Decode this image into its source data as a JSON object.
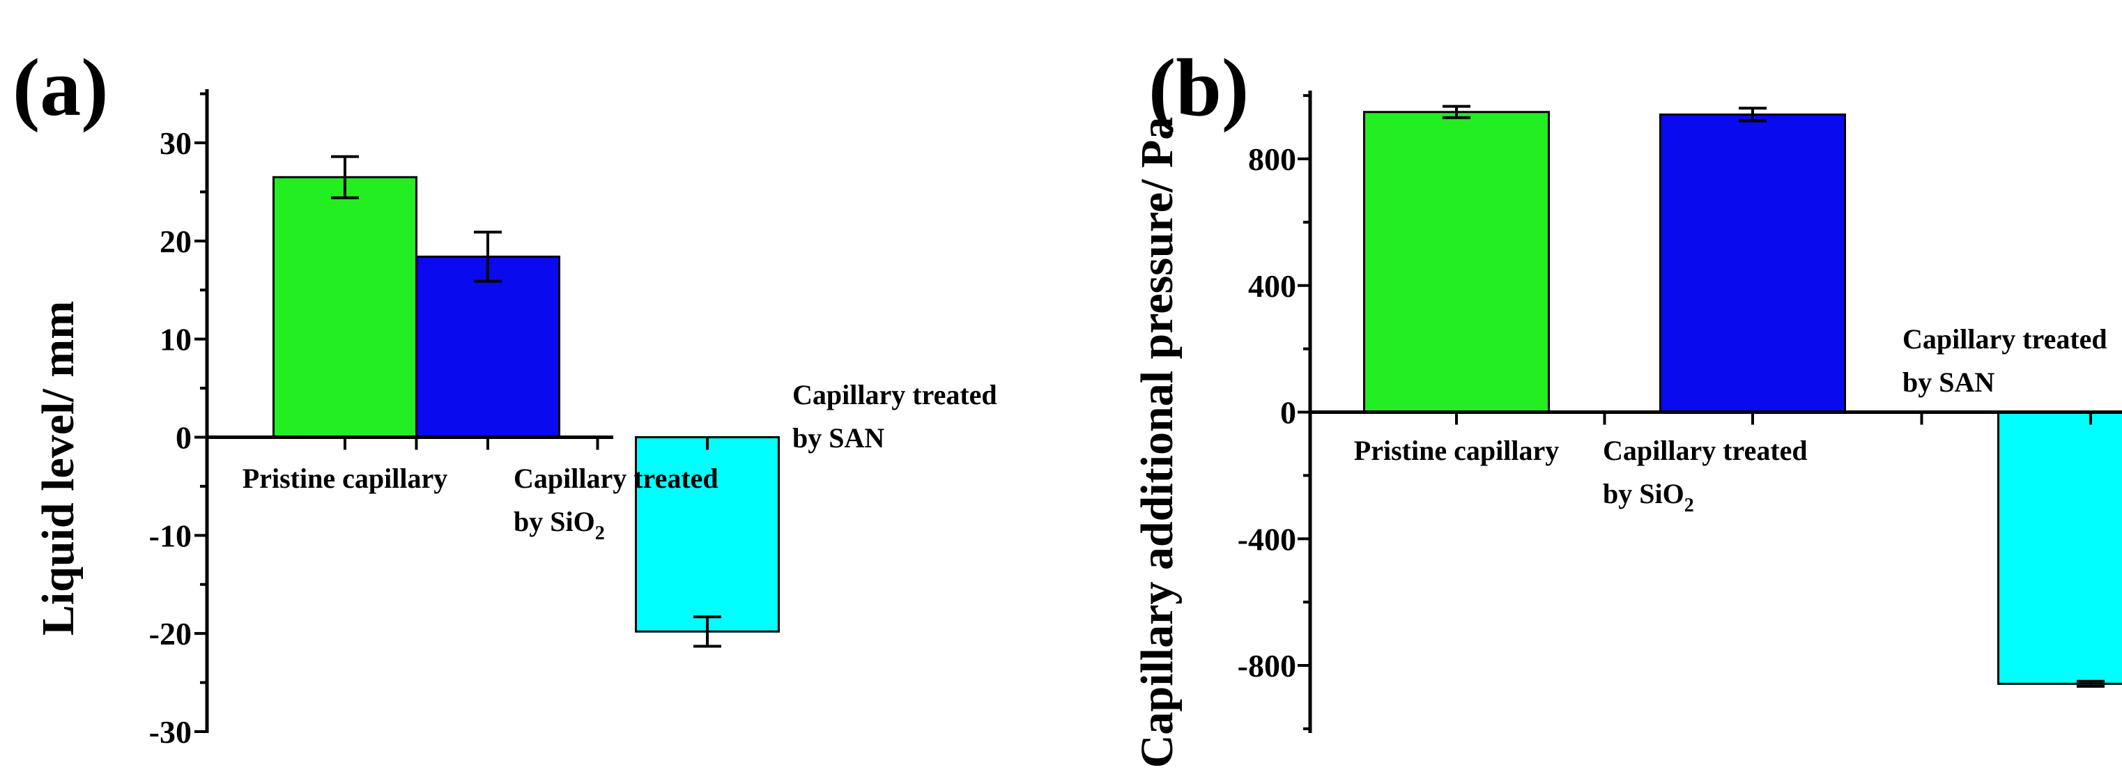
{
  "chart_data": [
    {
      "type": "bar",
      "panel_label": "(a)",
      "title": "",
      "xlabel": "",
      "ylabel": "Liquid level/ mm",
      "ylim": [
        -30,
        35
      ],
      "yticks": [
        30,
        20,
        10,
        0,
        -10,
        -20,
        -30
      ],
      "categories": [
        {
          "lines": [
            "Pristine capillary"
          ]
        },
        {
          "lines": [
            "Capillary treated",
            "by SiO",
            "2"
          ]
        },
        {
          "lines": [
            "Capillary treated",
            "by SAN"
          ]
        }
      ],
      "values": [
        26.5,
        18.4,
        -19.8
      ],
      "errors": [
        2.1,
        2.5,
        1.5
      ],
      "colors": [
        "#22ee22",
        "#0a0aee",
        "#00ffff"
      ]
    },
    {
      "type": "bar",
      "panel_label": "(b)",
      "title": "",
      "xlabel": "",
      "ylabel": "Capillary additional pressure/ Pa",
      "ylim": [
        -1000,
        1000
      ],
      "yticks": [
        800,
        400,
        0,
        -400,
        -800
      ],
      "categories": [
        {
          "lines": [
            "Pristine capillary"
          ]
        },
        {
          "lines": [
            "Capillary treated",
            "by SiO",
            "2"
          ]
        },
        {
          "lines": [
            "Capillary treated",
            "by SAN"
          ]
        }
      ],
      "values": [
        948,
        940,
        -858
      ],
      "errors": [
        18,
        20,
        8
      ],
      "colors": [
        "#22ee22",
        "#0a0aee",
        "#00ffff"
      ]
    }
  ]
}
